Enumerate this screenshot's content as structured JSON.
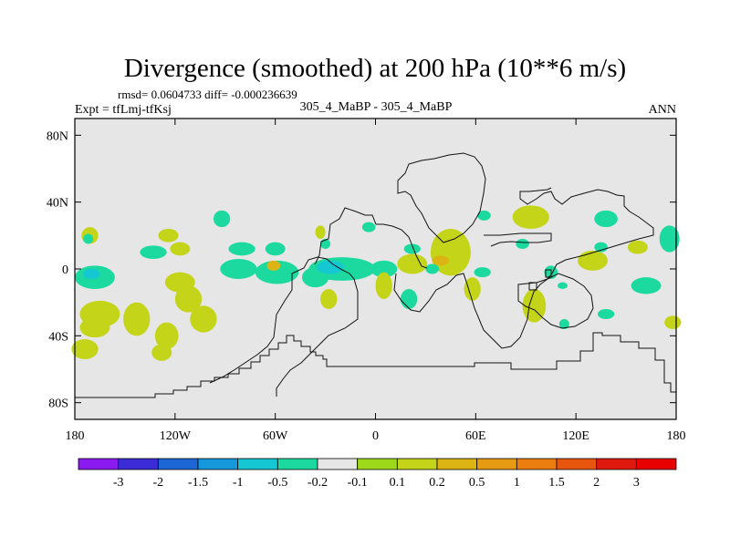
{
  "chart_data": {
    "type": "heatmap",
    "title": "Divergence (smoothed) at 200 hPa (10**6 m/s)",
    "stats_line": "rmsd= 0.0604733 diff= -0.000236639",
    "experiment_label": "Expt = tfLmj-tfKsj",
    "case_label": "305_4_MaBP - 305_4_MaBP",
    "season_label": "ANN",
    "x_axis": {
      "min": -180,
      "max": 180,
      "ticks": [
        -180,
        -120,
        -60,
        0,
        60,
        120,
        180
      ],
      "tick_labels": [
        "180",
        "120W",
        "60W",
        "0",
        "60E",
        "120E",
        "180"
      ]
    },
    "y_axis": {
      "min": -90,
      "max": 90,
      "ticks": [
        80,
        40,
        0,
        -40,
        -80
      ],
      "tick_labels": [
        "80N",
        "40N",
        "0",
        "40S",
        "80S"
      ]
    },
    "colorbar": {
      "labels": [
        "-3",
        "-2",
        "-1.5",
        "-1",
        "-0.5",
        "-0.2",
        "-0.1",
        "0.1",
        "0.2",
        "0.5",
        "1",
        "1.5",
        "2",
        "3"
      ],
      "colors": [
        "#8B1AF0",
        "#3B2CD8",
        "#1D66D6",
        "#1598DC",
        "#14C7D3",
        "#1CDA9F",
        "#E6E6E6",
        "#9ED81A",
        "#C4D418",
        "#DCB413",
        "#E69B12",
        "#EB7E0E",
        "#E8560D",
        "#E0190E",
        "#E80000"
      ]
    },
    "field_background": "#E6E6E6",
    "features": [
      {
        "lon": -171,
        "lat": 20,
        "rlon": 5,
        "rlat": 5,
        "level": 0.2
      },
      {
        "lon": -172,
        "lat": 18,
        "rlon": 3,
        "rlat": 3,
        "level": -0.2
      },
      {
        "lon": -168,
        "lat": -5,
        "rlon": 12,
        "rlat": 7,
        "level": -0.2
      },
      {
        "lon": -170,
        "lat": -3,
        "rlon": 5,
        "rlat": 3,
        "level": -0.5
      },
      {
        "lon": -165,
        "lat": -27,
        "rlon": 12,
        "rlat": 8,
        "level": 0.2
      },
      {
        "lon": -168,
        "lat": -35,
        "rlon": 9,
        "rlat": 6,
        "level": 0.2
      },
      {
        "lon": -174,
        "lat": -48,
        "rlon": 8,
        "rlat": 6,
        "level": 0.2
      },
      {
        "lon": -133,
        "lat": 10,
        "rlon": 8,
        "rlat": 4,
        "level": -0.2
      },
      {
        "lon": -124,
        "lat": 20,
        "rlon": 6,
        "rlat": 4,
        "level": 0.2
      },
      {
        "lon": -117,
        "lat": 12,
        "rlon": 6,
        "rlat": 4,
        "level": 0.2
      },
      {
        "lon": -143,
        "lat": -30,
        "rlon": 8,
        "rlat": 10,
        "level": 0.2
      },
      {
        "lon": -117,
        "lat": -8,
        "rlon": 9,
        "rlat": 6,
        "level": 0.2
      },
      {
        "lon": -112,
        "lat": -18,
        "rlon": 8,
        "rlat": 8,
        "level": 0.2
      },
      {
        "lon": -125,
        "lat": -40,
        "rlon": 7,
        "rlat": 8,
        "level": 0.2
      },
      {
        "lon": -128,
        "lat": -50,
        "rlon": 6,
        "rlat": 5,
        "level": 0.2
      },
      {
        "lon": -103,
        "lat": -30,
        "rlon": 8,
        "rlat": 8,
        "level": 0.2
      },
      {
        "lon": -92,
        "lat": 30,
        "rlon": 5,
        "rlat": 5,
        "level": -0.2
      },
      {
        "lon": -80,
        "lat": 12,
        "rlon": 8,
        "rlat": 4,
        "level": -0.2
      },
      {
        "lon": -60,
        "lat": 12,
        "rlon": 6,
        "rlat": 4,
        "level": -0.2
      },
      {
        "lon": -82,
        "lat": 0,
        "rlon": 11,
        "rlat": 6,
        "level": -0.2
      },
      {
        "lon": -59,
        "lat": -2,
        "rlon": 13,
        "rlat": 7,
        "level": -0.2
      },
      {
        "lon": -61,
        "lat": 2,
        "rlon": 4,
        "rlat": 3,
        "level": 0.5
      },
      {
        "lon": -33,
        "lat": 22,
        "rlon": 3,
        "rlat": 4,
        "level": 0.2
      },
      {
        "lon": -30,
        "lat": 15,
        "rlon": 3,
        "rlat": 3,
        "level": -0.2
      },
      {
        "lon": -36,
        "lat": -5,
        "rlon": 8,
        "rlat": 6,
        "level": -0.2
      },
      {
        "lon": -28,
        "lat": -18,
        "rlon": 5,
        "rlat": 6,
        "level": 0.2
      },
      {
        "lon": -20,
        "lat": 0,
        "rlon": 20,
        "rlat": 7,
        "level": -0.2
      },
      {
        "lon": -27,
        "lat": 1,
        "rlon": 8,
        "rlat": 4,
        "level": -0.5
      },
      {
        "lon": -4,
        "lat": 25,
        "rlon": 4,
        "rlat": 3,
        "level": -0.2
      },
      {
        "lon": 5,
        "lat": 0,
        "rlon": 8,
        "rlat": 5,
        "level": -0.2
      },
      {
        "lon": 5,
        "lat": -10,
        "rlon": 5,
        "rlat": 8,
        "level": 0.2
      },
      {
        "lon": 22,
        "lat": 3,
        "rlon": 9,
        "rlat": 6,
        "level": 0.2
      },
      {
        "lon": 20,
        "lat": -18,
        "rlon": 5,
        "rlat": 6,
        "level": -0.2
      },
      {
        "lon": 45,
        "lat": 10,
        "rlon": 12,
        "rlat": 14,
        "level": 0.2
      },
      {
        "lon": 39,
        "lat": 5,
        "rlon": 5,
        "rlat": 3,
        "level": 0.5
      },
      {
        "lon": 34,
        "lat": 0,
        "rlon": 4,
        "rlat": 3,
        "level": -0.2
      },
      {
        "lon": 22,
        "lat": 12,
        "rlon": 5,
        "rlat": 3,
        "level": -0.2
      },
      {
        "lon": 65,
        "lat": 32,
        "rlon": 4,
        "rlat": 3,
        "level": -0.2
      },
      {
        "lon": 64,
        "lat": -2,
        "rlon": 5,
        "rlat": 3,
        "level": -0.2
      },
      {
        "lon": 58,
        "lat": -12,
        "rlon": 5,
        "rlat": 7,
        "level": 0.2
      },
      {
        "lon": 93,
        "lat": 31,
        "rlon": 11,
        "rlat": 7,
        "level": 0.2
      },
      {
        "lon": 88,
        "lat": 15,
        "rlon": 4,
        "rlat": 3,
        "level": -0.2
      },
      {
        "lon": 105,
        "lat": -2,
        "rlon": 4,
        "rlat": 4,
        "level": -0.2
      },
      {
        "lon": 112,
        "lat": -10,
        "rlon": 3,
        "rlat": 2,
        "level": -0.2
      },
      {
        "lon": 95,
        "lat": -22,
        "rlon": 7,
        "rlat": 10,
        "level": 0.2
      },
      {
        "lon": 113,
        "lat": -33,
        "rlon": 3,
        "rlat": 3,
        "level": -0.2
      },
      {
        "lon": 130,
        "lat": 5,
        "rlon": 9,
        "rlat": 6,
        "level": 0.2
      },
      {
        "lon": 138,
        "lat": 30,
        "rlon": 7,
        "rlat": 5,
        "level": -0.2
      },
      {
        "lon": 157,
        "lat": 13,
        "rlon": 6,
        "rlat": 4,
        "level": 0.2
      },
      {
        "lon": 135,
        "lat": 13,
        "rlon": 4,
        "rlat": 3,
        "level": -0.2
      },
      {
        "lon": 162,
        "lat": -10,
        "rlon": 9,
        "rlat": 5,
        "level": -0.2
      },
      {
        "lon": 138,
        "lat": -27,
        "rlon": 5,
        "rlat": 3,
        "level": -0.2
      },
      {
        "lon": 176,
        "lat": 18,
        "rlon": 6,
        "rlat": 8,
        "level": -0.2
      },
      {
        "lon": 178,
        "lat": -32,
        "rlon": 5,
        "rlat": 4,
        "level": 0.2
      }
    ]
  }
}
